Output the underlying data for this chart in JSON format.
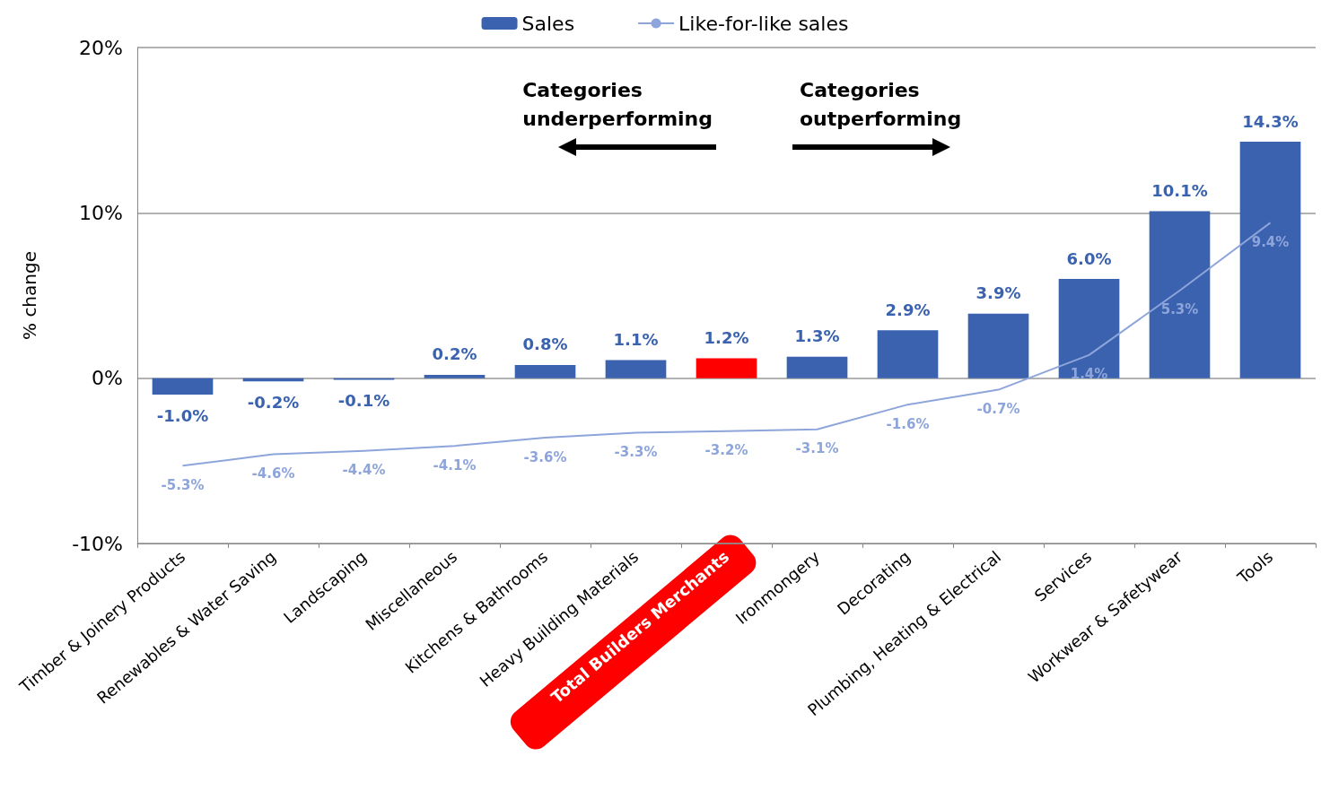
{
  "chart_data": {
    "type": "bar",
    "ylabel": "% change",
    "categories": [
      "Timber & Joinery Products",
      "Renewables & Water Saving",
      "Landscaping",
      "Miscellaneous",
      "Kitchens & Bathrooms",
      "Heavy Building Materials",
      "Total Builders Merchants",
      "Ironmongery",
      "Decorating",
      "Plumbing, Heating & Electrical",
      "Services",
      "Workwear & Safetywear",
      "Tools"
    ],
    "series": [
      {
        "name": "Sales",
        "color": "#3a62ae",
        "colors": [
          "#3a62ae",
          "#3a62ae",
          "#3a62ae",
          "#3a62ae",
          "#3a62ae",
          "#3a62ae",
          "#ff0000",
          "#3a62ae",
          "#3a62ae",
          "#3a62ae",
          "#3a62ae",
          "#3a62ae",
          "#3a62ae"
        ],
        "values": [
          -1.0,
          -0.2,
          -0.1,
          0.2,
          0.8,
          1.1,
          1.2,
          1.3,
          2.9,
          3.9,
          6.0,
          10.1,
          14.3
        ],
        "value_labels": [
          "-1.0%",
          "-0.2%",
          "-0.1%",
          "0.2%",
          "0.8%",
          "1.1%",
          "1.2%",
          "1.3%",
          "2.9%",
          "3.9%",
          "6.0%",
          "10.1%",
          "14.3%"
        ]
      },
      {
        "name": "Like-for-like sales",
        "type": "line",
        "color": "#8ea5db",
        "marker": "none",
        "values": [
          -5.3,
          -4.6,
          -4.4,
          -4.1,
          -3.6,
          -3.3,
          -3.2,
          -3.1,
          -1.6,
          -0.7,
          1.4,
          5.3,
          9.4
        ],
        "value_labels": [
          "-5.3%",
          "-4.6%",
          "-4.4%",
          "-4.1%",
          "-3.6%",
          "-3.3%",
          "-3.2%",
          "-3.1%",
          "-1.6%",
          "-0.7%",
          "1.4%",
          "5.3%",
          "9.4%"
        ]
      }
    ],
    "ylim": [
      -10,
      20
    ],
    "yticks": [
      {
        "value": -10,
        "label": "-10%"
      },
      {
        "value": 0,
        "label": "0%"
      },
      {
        "value": 10,
        "label": "10%"
      },
      {
        "value": 20,
        "label": "20%"
      }
    ],
    "grid": "y",
    "legend": "top",
    "annotations": [
      "Categories underperforming",
      "Categories outperforming"
    ]
  }
}
